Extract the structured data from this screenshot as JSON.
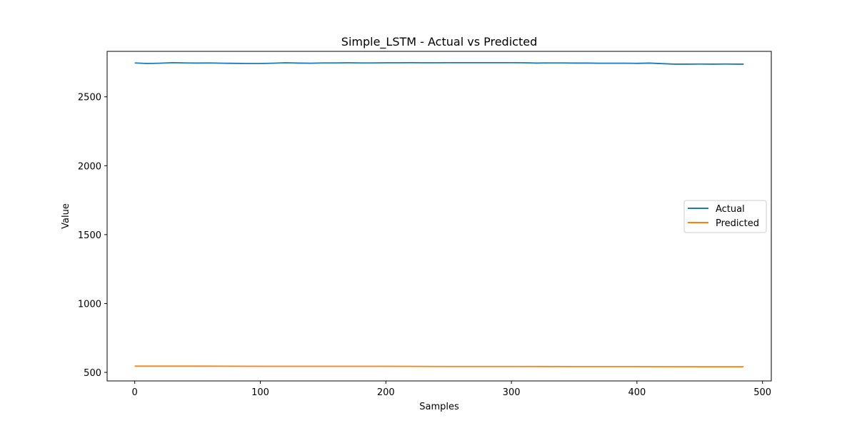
{
  "chart_data": {
    "type": "line",
    "title": "Simple_LSTM - Actual vs Predicted",
    "xlabel": "Samples",
    "ylabel": "Value",
    "xlim": [
      -22,
      507
    ],
    "ylim": [
      438,
      2830
    ],
    "xticks": [
      0,
      100,
      200,
      300,
      400,
      500
    ],
    "yticks": [
      500,
      1000,
      1500,
      2000,
      2500
    ],
    "grid": false,
    "legend_position": "center-right",
    "series": [
      {
        "name": "Actual",
        "color": "#1f77b4",
        "x": [
          0,
          10,
          20,
          30,
          40,
          50,
          60,
          70,
          80,
          90,
          100,
          110,
          120,
          130,
          140,
          150,
          160,
          170,
          180,
          190,
          200,
          210,
          220,
          230,
          240,
          250,
          260,
          270,
          280,
          290,
          300,
          310,
          320,
          330,
          340,
          350,
          360,
          370,
          380,
          390,
          400,
          410,
          420,
          430,
          440,
          450,
          460,
          470,
          480,
          485
        ],
        "y": [
          2746,
          2742,
          2744,
          2748,
          2746,
          2745,
          2746,
          2744,
          2743,
          2742,
          2742,
          2744,
          2747,
          2745,
          2744,
          2746,
          2746,
          2747,
          2746,
          2746,
          2747,
          2747,
          2748,
          2747,
          2747,
          2748,
          2748,
          2748,
          2748,
          2748,
          2748,
          2747,
          2745,
          2746,
          2746,
          2745,
          2745,
          2744,
          2744,
          2744,
          2743,
          2745,
          2741,
          2737,
          2737,
          2738,
          2737,
          2738,
          2737,
          2737
        ]
      },
      {
        "name": "Predicted",
        "color": "#ff7f0e",
        "x": [
          0,
          50,
          100,
          150,
          200,
          250,
          300,
          350,
          400,
          450,
          485
        ],
        "y": [
          545,
          545,
          544,
          544,
          544,
          543,
          543,
          542,
          542,
          541,
          541
        ]
      }
    ]
  }
}
